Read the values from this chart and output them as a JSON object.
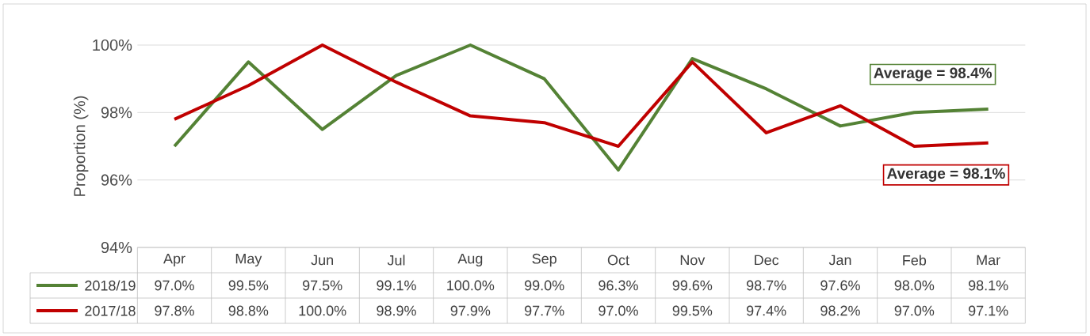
{
  "chart_data": {
    "type": "line",
    "ylabel": "Proportion (%)",
    "categories": [
      "Apr",
      "May",
      "Jun",
      "Jul",
      "Aug",
      "Sep",
      "Oct",
      "Nov",
      "Dec",
      "Jan",
      "Feb",
      "Mar"
    ],
    "series": [
      {
        "name": "2018/19",
        "color": "#548235",
        "values": [
          97.0,
          99.5,
          97.5,
          99.1,
          100.0,
          99.0,
          96.3,
          99.6,
          98.7,
          97.6,
          98.0,
          98.1
        ],
        "value_labels": [
          "97.0%",
          "99.5%",
          "97.5%",
          "99.1%",
          "100.0%",
          "99.0%",
          "96.3%",
          "99.6%",
          "98.7%",
          "97.6%",
          "98.0%",
          "98.1%"
        ]
      },
      {
        "name": "2017/18",
        "color": "#c00000",
        "values": [
          97.8,
          98.8,
          100.0,
          98.9,
          97.9,
          97.7,
          97.0,
          99.5,
          97.4,
          98.2,
          97.0,
          97.1
        ],
        "value_labels": [
          "97.8%",
          "98.8%",
          "100.0%",
          "98.9%",
          "97.9%",
          "97.7%",
          "97.0%",
          "99.5%",
          "97.4%",
          "98.2%",
          "97.0%",
          "97.1%"
        ]
      }
    ],
    "ylim": [
      94,
      100
    ],
    "yticks": [
      {
        "value": 94,
        "label": "94%"
      },
      {
        "value": 96,
        "label": "96%"
      },
      {
        "value": 98,
        "label": "98%"
      },
      {
        "value": 100,
        "label": "100%"
      }
    ],
    "grid": "y",
    "legend": "bottom",
    "marker": "none",
    "line_style": "solid",
    "annotations": [
      "Average = 98.4%",
      "Average = 98.1%"
    ]
  }
}
